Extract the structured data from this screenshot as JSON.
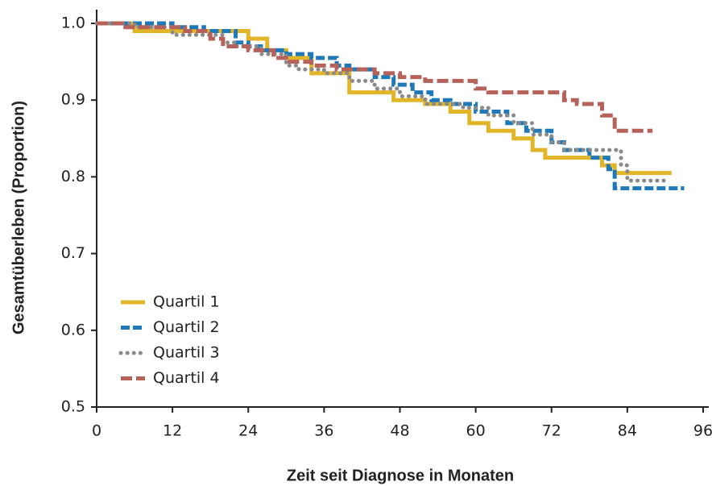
{
  "chart_data": {
    "type": "line",
    "step": true,
    "xlabel": "Zeit seit Diagnose in Monaten",
    "ylabel": "Gesamtüberleben (Proportion)",
    "xlim": [
      0,
      96
    ],
    "xticks": [
      0,
      12,
      24,
      36,
      48,
      60,
      72,
      84,
      96
    ],
    "ylim": [
      0.5,
      1.0
    ],
    "yticks": [
      0.5,
      0.6,
      0.7,
      0.8,
      0.9,
      {
        "value": 1.0,
        "label": "1.0"
      }
    ],
    "grid": false,
    "legend": "lower left",
    "series": [
      {
        "name": "Quartil 1",
        "color": "#e2b528",
        "dash": "solid",
        "x": [
          0,
          6,
          6,
          24,
          24,
          27,
          27,
          30,
          30,
          34,
          34,
          40,
          40,
          47,
          47,
          52,
          52,
          56,
          56,
          59,
          59,
          62,
          62,
          66,
          66,
          69,
          69,
          71,
          71,
          80,
          80,
          82,
          82,
          91
        ],
        "values": [
          1,
          1,
          0.99,
          0.99,
          0.98,
          0.98,
          0.965,
          0.965,
          0.955,
          0.955,
          0.935,
          0.935,
          0.91,
          0.91,
          0.9,
          0.9,
          0.895,
          0.895,
          0.885,
          0.885,
          0.87,
          0.87,
          0.86,
          0.86,
          0.85,
          0.85,
          0.835,
          0.835,
          0.825,
          0.825,
          0.815,
          0.815,
          0.805,
          0.805
        ]
      },
      {
        "name": "Quartil 2",
        "color": "#1f79b8",
        "dash": "dashed",
        "x": [
          0,
          12,
          12,
          17,
          17,
          22,
          22,
          24,
          24,
          26,
          26,
          30,
          30,
          34,
          34,
          38,
          38,
          40,
          40,
          44,
          44,
          47,
          47,
          50,
          50,
          53,
          53,
          56,
          56,
          60,
          60,
          65,
          65,
          68,
          68,
          72,
          72,
          74,
          74,
          78,
          78,
          81,
          81,
          82,
          82,
          93
        ],
        "values": [
          1,
          1,
          0.995,
          0.995,
          0.99,
          0.99,
          0.975,
          0.975,
          0.97,
          0.97,
          0.965,
          0.965,
          0.96,
          0.96,
          0.955,
          0.955,
          0.945,
          0.945,
          0.94,
          0.94,
          0.93,
          0.93,
          0.92,
          0.92,
          0.91,
          0.91,
          0.9,
          0.9,
          0.895,
          0.895,
          0.885,
          0.885,
          0.87,
          0.87,
          0.86,
          0.86,
          0.845,
          0.845,
          0.835,
          0.835,
          0.825,
          0.825,
          0.81,
          0.81,
          0.785,
          0.785
        ]
      },
      {
        "name": "Quartil 3",
        "color": "#8a8a8a",
        "dash": "dotted",
        "x": [
          0,
          6,
          6,
          12,
          12,
          20,
          20,
          22,
          22,
          26,
          26,
          30,
          30,
          32,
          32,
          36,
          36,
          40,
          40,
          44,
          44,
          48,
          48,
          52,
          52,
          58,
          58,
          62,
          62,
          66,
          66,
          69,
          69,
          72,
          72,
          74,
          74,
          83,
          83,
          84,
          84,
          90
        ],
        "values": [
          1,
          1,
          0.995,
          0.995,
          0.985,
          0.985,
          0.975,
          0.975,
          0.97,
          0.97,
          0.96,
          0.96,
          0.945,
          0.945,
          0.94,
          0.94,
          0.935,
          0.935,
          0.925,
          0.925,
          0.915,
          0.915,
          0.905,
          0.905,
          0.895,
          0.895,
          0.89,
          0.89,
          0.88,
          0.88,
          0.87,
          0.87,
          0.855,
          0.855,
          0.845,
          0.845,
          0.835,
          0.835,
          0.815,
          0.815,
          0.795,
          0.795
        ]
      },
      {
        "name": "Quartil 4",
        "color": "#b5625a",
        "dash": "dashdot",
        "x": [
          0,
          4,
          4,
          14,
          14,
          18,
          18,
          20,
          20,
          24,
          24,
          28,
          28,
          30,
          30,
          34,
          34,
          38,
          38,
          44,
          44,
          48,
          48,
          52,
          52,
          60,
          60,
          62,
          62,
          74,
          74,
          76,
          76,
          80,
          80,
          82,
          82,
          88
        ],
        "values": [
          1,
          1,
          0.995,
          0.995,
          0.99,
          0.99,
          0.98,
          0.98,
          0.97,
          0.97,
          0.965,
          0.965,
          0.955,
          0.955,
          0.95,
          0.95,
          0.945,
          0.945,
          0.94,
          0.94,
          0.935,
          0.935,
          0.93,
          0.93,
          0.925,
          0.925,
          0.915,
          0.915,
          0.91,
          0.91,
          0.9,
          0.9,
          0.895,
          0.895,
          0.88,
          0.88,
          0.86,
          0.86
        ]
      }
    ]
  }
}
